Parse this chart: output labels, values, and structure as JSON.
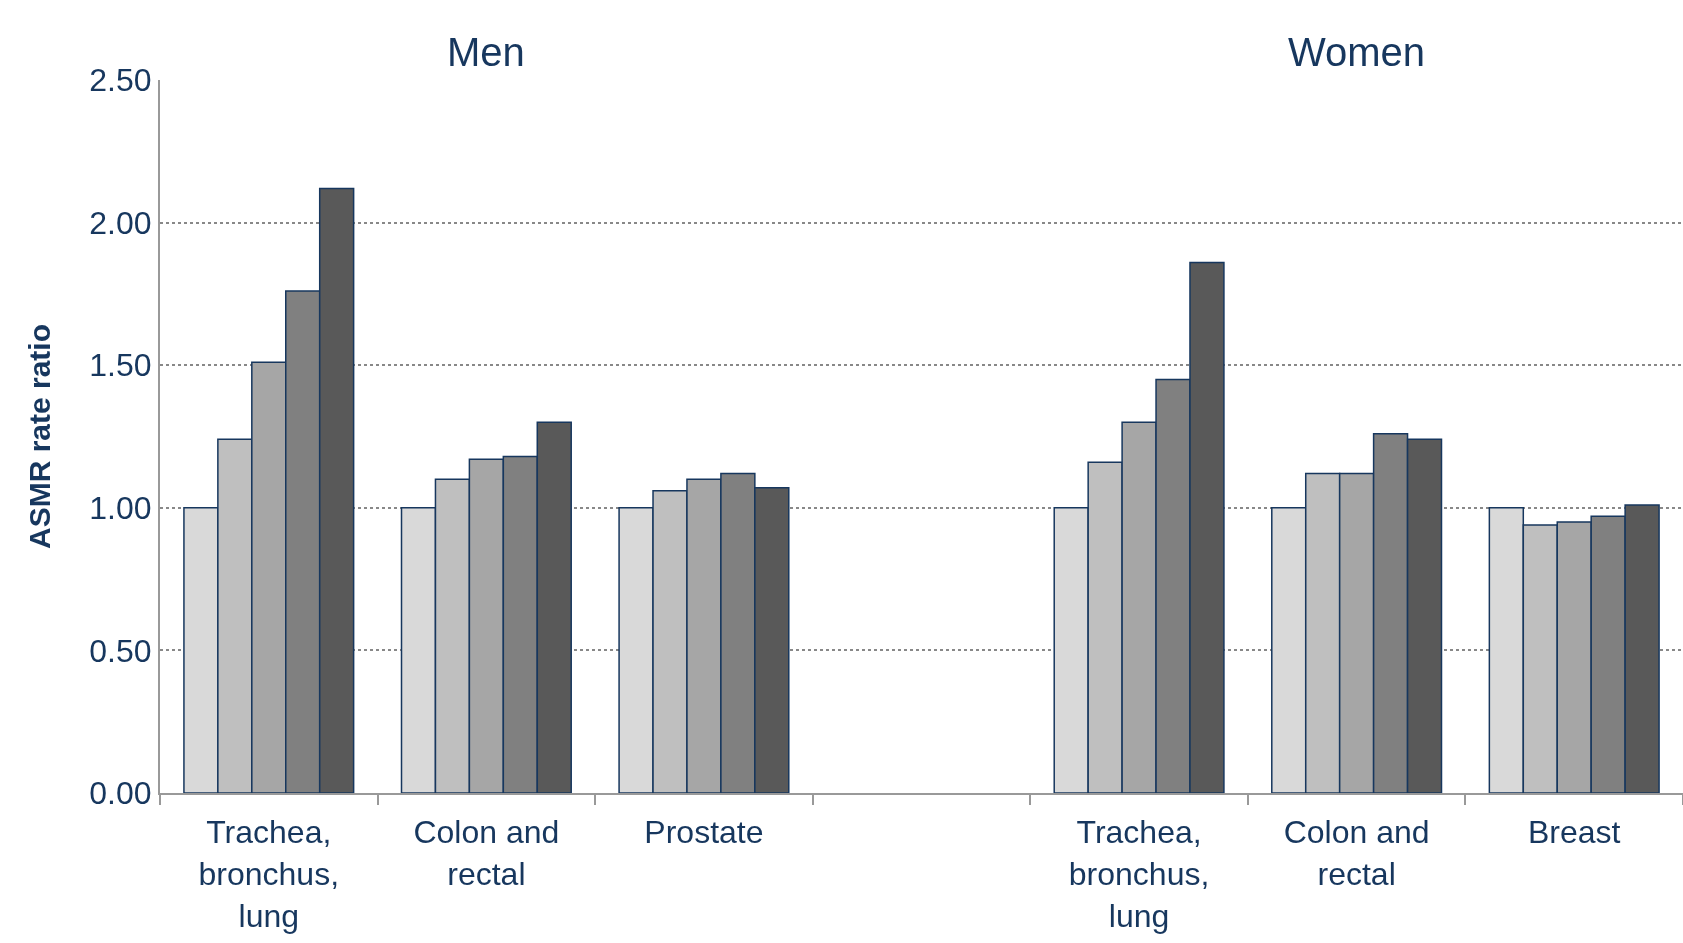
{
  "chart_data": {
    "type": "bar",
    "categories": [
      "Trachea,\nbronchus,\nlung",
      "Colon and\nrectal",
      "Prostate",
      null,
      "Trachea,\nbronchus,\nlung",
      "Colon and\nrectal",
      "Breast"
    ],
    "series": [
      {
        "color": "#d9d9d9",
        "values": [
          1.0,
          1.0,
          1.0,
          null,
          1.0,
          1.0,
          1.0
        ]
      },
      {
        "color": "#bfbfbf",
        "values": [
          1.24,
          1.1,
          1.06,
          null,
          1.16,
          1.12,
          0.94
        ]
      },
      {
        "color": "#a6a6a6",
        "values": [
          1.51,
          1.17,
          1.1,
          null,
          1.3,
          1.12,
          0.95
        ]
      },
      {
        "color": "#808080",
        "values": [
          1.76,
          1.18,
          1.12,
          null,
          1.45,
          1.26,
          0.97
        ]
      },
      {
        "color": "#595959",
        "values": [
          2.12,
          1.3,
          1.07,
          null,
          1.86,
          1.24,
          1.01
        ]
      }
    ],
    "ylabel": "ASMR rate ratio",
    "annotations": [
      "Men",
      "Women"
    ],
    "ylim": [
      0,
      2.5
    ],
    "yticks": [
      {
        "value": 0,
        "label": "0.00"
      },
      {
        "value": 0.5,
        "label": "0.50"
      },
      {
        "value": 1,
        "label": "1.00"
      },
      {
        "value": 1.5,
        "label": "1.50"
      },
      {
        "value": 2,
        "label": "2.00"
      },
      {
        "value": 2.5,
        "label": "2.50"
      }
    ],
    "grid": "y"
  }
}
